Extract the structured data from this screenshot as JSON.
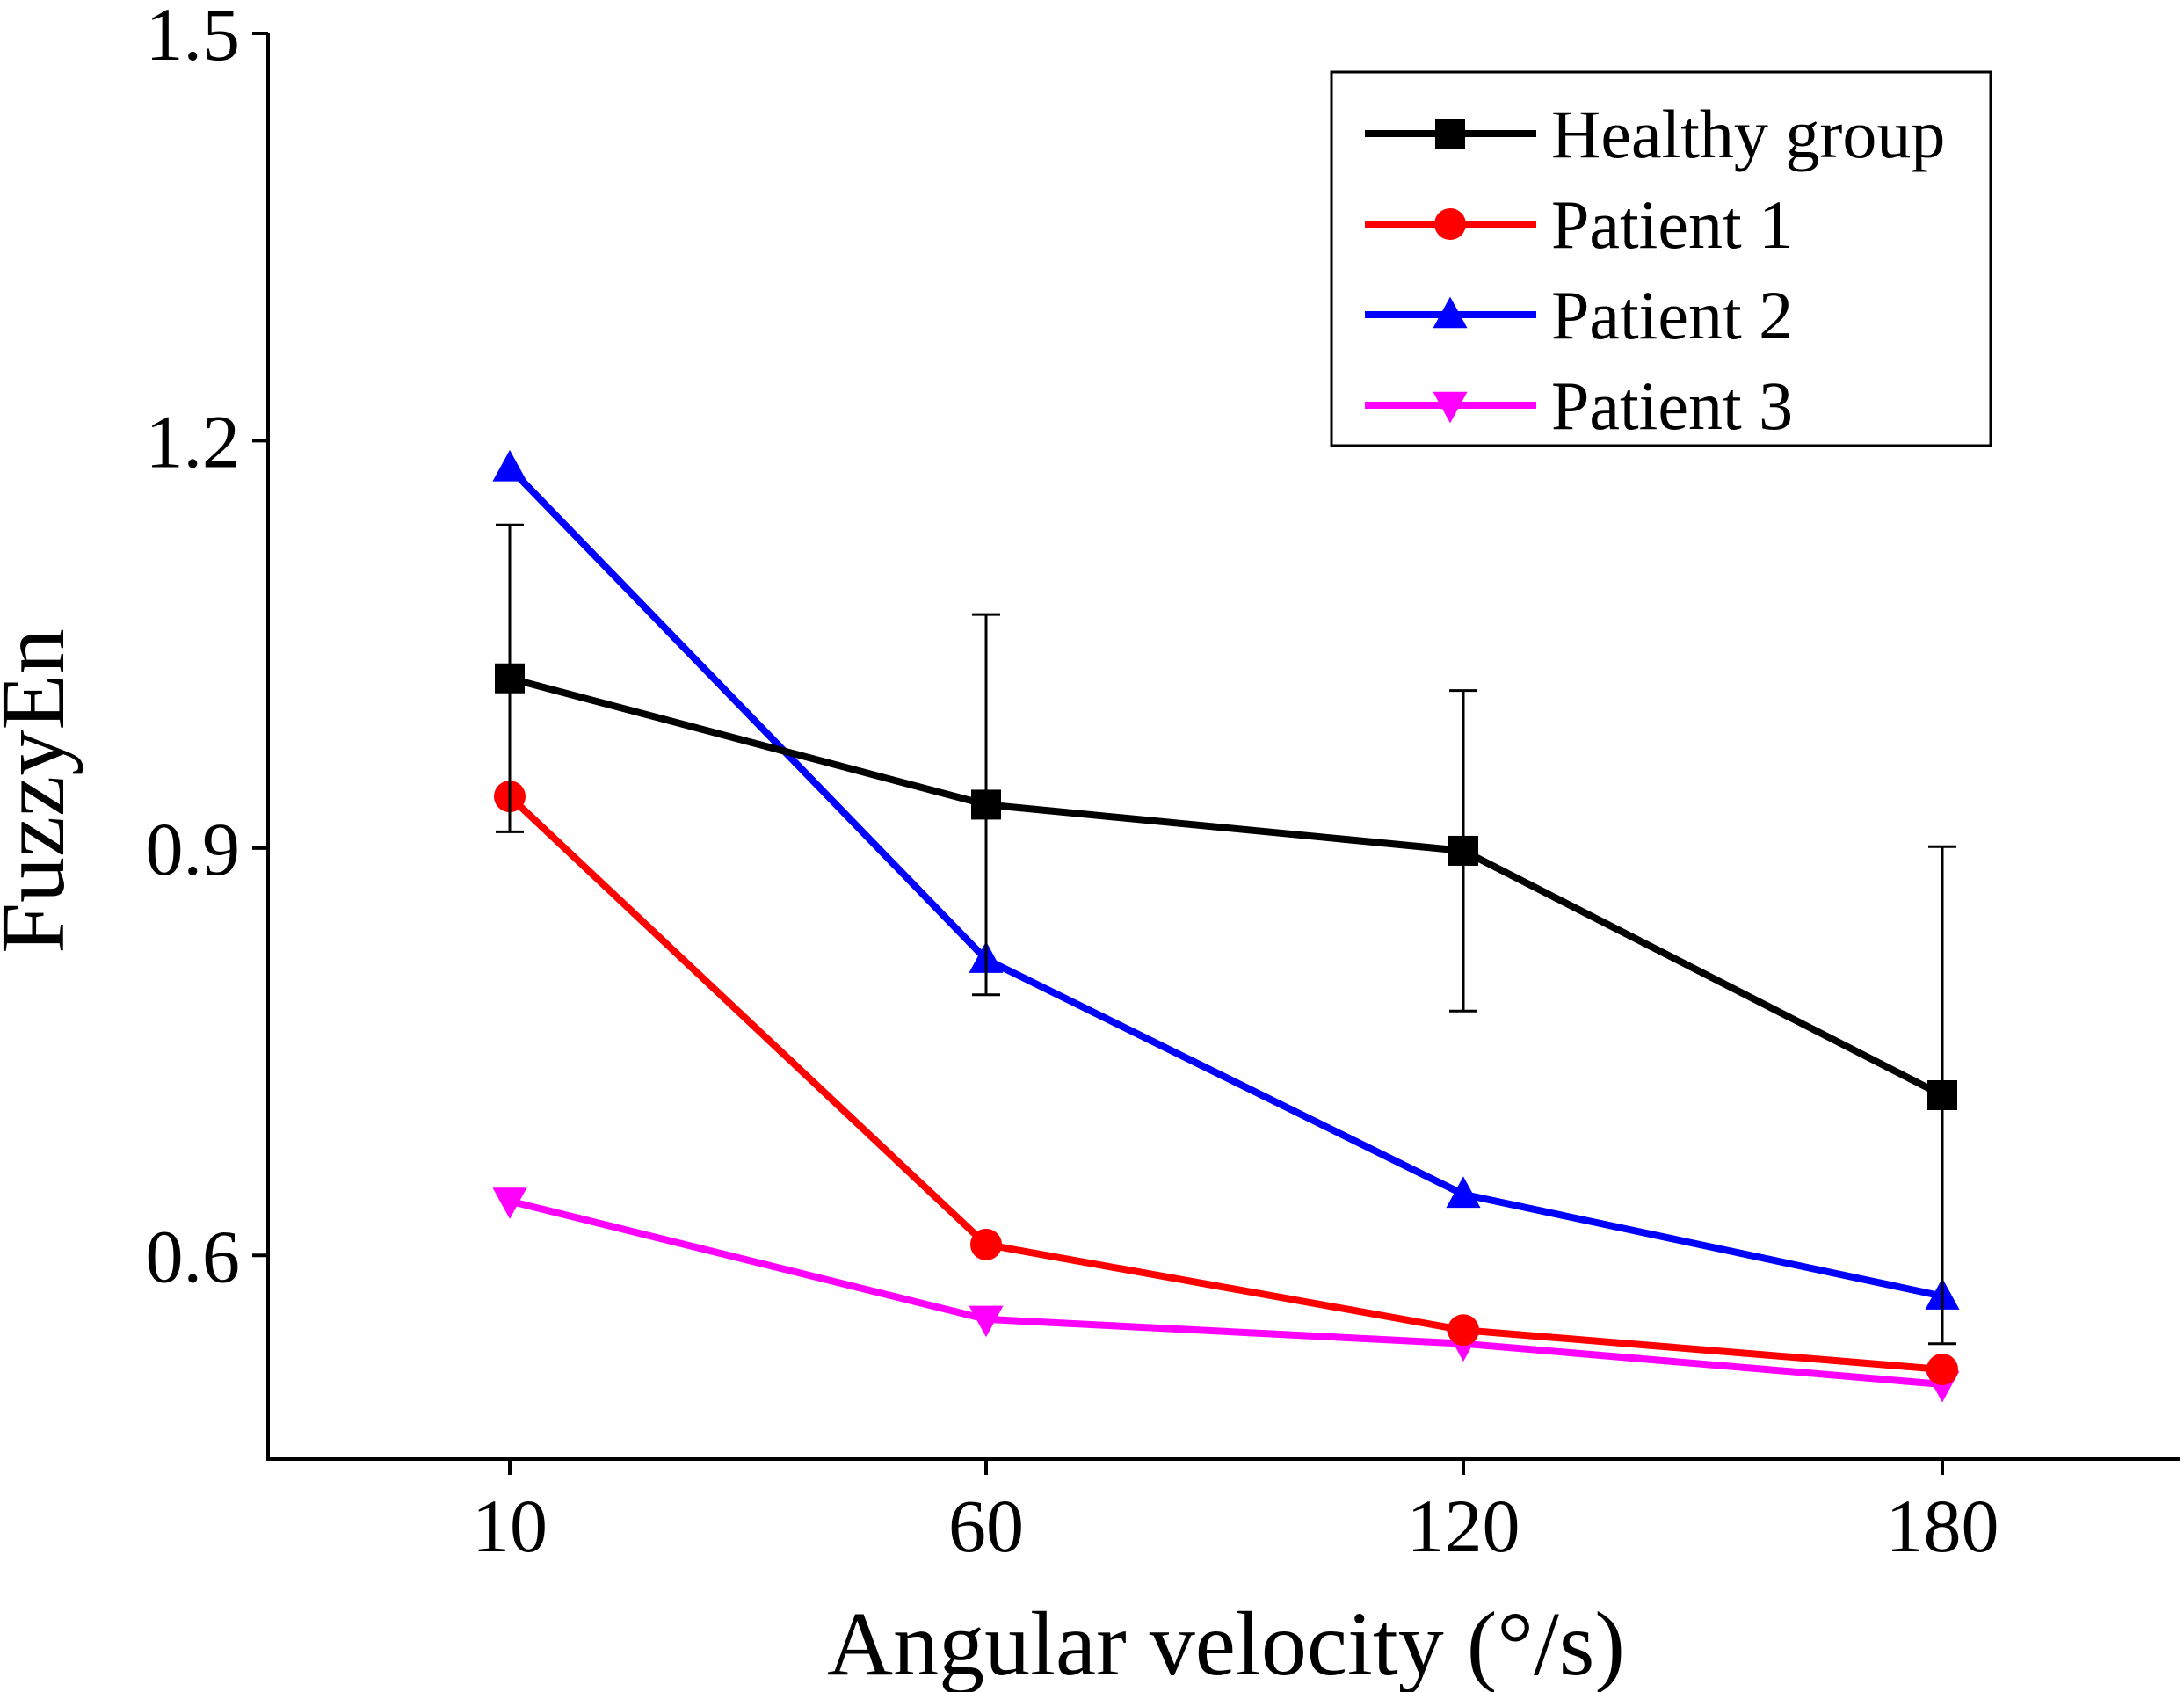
{
  "chart_data": {
    "type": "line",
    "title": "",
    "xlabel": "Angular velocity (°/s)",
    "ylabel": "FuzzyEn",
    "categories": [
      "10",
      "60",
      "120",
      "180"
    ],
    "ylim": [
      0.45,
      1.5
    ],
    "yticks": [
      "0.6",
      "0.9",
      "1.2",
      "1.5"
    ],
    "grid": false,
    "legend_position": "top-right",
    "series": [
      {
        "name": "Healthy group",
        "color": "#000000",
        "marker": "square",
        "values": [
          1.025,
          0.932,
          0.898,
          0.718
        ],
        "error": [
          0.113,
          0.14,
          0.118,
          0.183
        ]
      },
      {
        "name": "Patient 1",
        "color": "#ff0000",
        "marker": "circle",
        "values": [
          0.938,
          0.608,
          0.545,
          0.516
        ]
      },
      {
        "name": "Patient 2",
        "color": "#0000ff",
        "marker": "triangle-up",
        "values": [
          1.18,
          0.818,
          0.645,
          0.57
        ]
      },
      {
        "name": "Patient 3",
        "color": "#ff00ff",
        "marker": "triangle-down",
        "values": [
          0.64,
          0.553,
          0.535,
          0.505
        ]
      }
    ]
  }
}
